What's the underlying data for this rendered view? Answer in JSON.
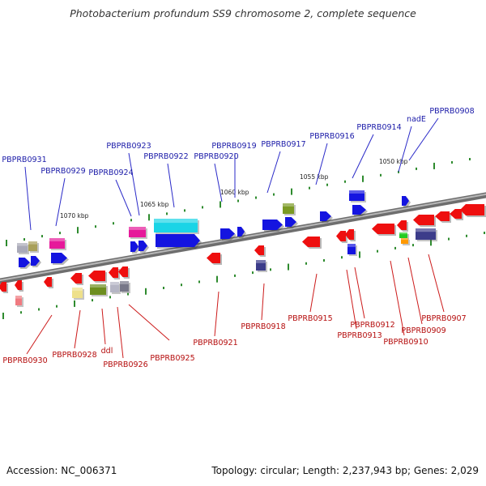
{
  "title": "Photobacterium profundum SS9 chromosome 2, complete sequence",
  "footer": {
    "accession": "Accession: NC_006371",
    "summary": "Topology: circular; Length: 2,237,943 bp; Genes: 2,029"
  },
  "colors": {
    "backbone": "#8a8a8a",
    "tick": "#2e8b2e",
    "forward_label": "#1a1aa8",
    "reverse_label": "#b50d0d",
    "forward_line": "#2a2ac8",
    "reverse_line": "#cc1a1a"
  },
  "scale_labels": [
    "1050 kbp",
    "1055 kbp",
    "1060 kbp",
    "1065 kbp",
    "1070 kbp"
  ],
  "forward_labels": [
    "PBPRB0908",
    "nadE",
    "PBPRB0914",
    "PBPRB0916",
    "PBPRB0917",
    "PBPRB0919",
    "PBPRB0920",
    "PBPRB0922",
    "PBPRB0923",
    "PBPRB0924",
    "PBPRB0929",
    "PBPRB0931"
  ],
  "reverse_labels": [
    "PBPRB0907",
    "PBPRB0909",
    "PBPRB0910",
    "PBPRB0912",
    "PBPRB0913",
    "PBPRB0915",
    "PBPRB0918",
    "PBPRB0921",
    "PBPRB0925",
    "PBPRB0926",
    "ddl",
    "PBPRB0928",
    "PBPRB0930"
  ]
}
